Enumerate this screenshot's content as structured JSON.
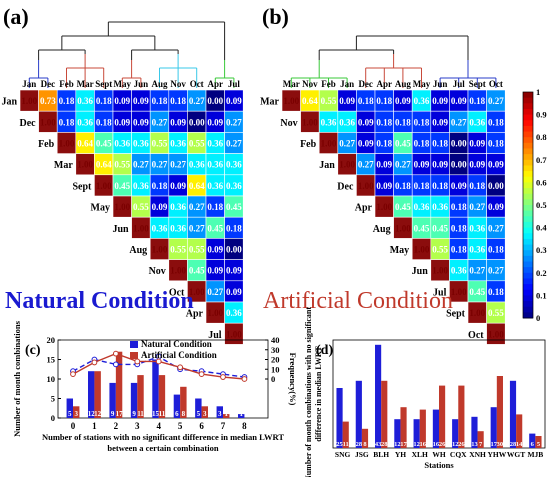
{
  "panels": {
    "a_label": "(a)",
    "b_label": "(b)",
    "c_label": "(c)",
    "d_label": "(d)",
    "natural_title": "Natural Condition",
    "artificial_title": "Artificial Condition"
  },
  "colorbar": {
    "ticks": [
      "0",
      "0.1",
      "0.2",
      "0.3",
      "0.4",
      "0.5",
      "0.6",
      "0.7",
      "0.8",
      "0.9",
      "1"
    ]
  },
  "chart_data": [
    {
      "type": "heatmap",
      "panel": "a",
      "labels": [
        "Jan",
        "Dec",
        "Feb",
        "Mar",
        "Sept",
        "May",
        "Jun",
        "Aug",
        "Nov",
        "Oct",
        "Apr",
        "Jul"
      ],
      "dendrogram_colors": [
        "#2a3cc8",
        "#c84a3a",
        "#c84a3a",
        "#3ac8e8",
        "#3ac83a"
      ],
      "matrix": [
        [
          "1.00",
          "0.73",
          "0.18",
          "0.36",
          "0.18",
          "0.09",
          "0.09",
          "0.18",
          "0.18",
          "0.27",
          "0.00",
          "0.09"
        ],
        [
          "",
          "1.00",
          "0.18",
          "0.36",
          "0.18",
          "0.09",
          "0.09",
          "0.27",
          "0.09",
          "0.00",
          "0.09",
          "0.27"
        ],
        [
          "",
          "",
          "1.00",
          "0.64",
          "0.45",
          "0.36",
          "0.36",
          "0.55",
          "0.36",
          "0.55",
          "0.36",
          "0.27"
        ],
        [
          "",
          "",
          "",
          "1.00",
          "0.64",
          "0.55",
          "0.27",
          "0.27",
          "0.27",
          "0.36",
          "0.36",
          "0.36"
        ],
        [
          "",
          "",
          "",
          "",
          "1.00",
          "0.45",
          "0.36",
          "0.18",
          "0.09",
          "0.64",
          "0.36",
          "0.36"
        ],
        [
          "",
          "",
          "",
          "",
          "",
          "1.00",
          "0.55",
          "0.09",
          "0.36",
          "0.27",
          "0.18",
          "0.45"
        ],
        [
          "",
          "",
          "",
          "",
          "",
          "",
          "1.00",
          "0.36",
          "0.36",
          "0.27",
          "0.45",
          "0.18"
        ],
        [
          "",
          "",
          "",
          "",
          "",
          "",
          "",
          "1.00",
          "0.55",
          "0.55",
          "0.09",
          "0.00"
        ],
        [
          "",
          "",
          "",
          "",
          "",
          "",
          "",
          "",
          "1.00",
          "0.45",
          "0.09",
          "0.09"
        ],
        [
          "",
          "",
          "",
          "",
          "",
          "",
          "",
          "",
          "",
          "1.00",
          "0.27",
          "0.09"
        ],
        [
          "",
          "",
          "",
          "",
          "",
          "",
          "",
          "",
          "",
          "",
          "1.00",
          "0.36"
        ],
        [
          "",
          "",
          "",
          "",
          "",
          "",
          "",
          "",
          "",
          "",
          "",
          "1.00"
        ]
      ]
    },
    {
      "type": "heatmap",
      "panel": "b",
      "labels": [
        "Mar",
        "Nov",
        "Feb",
        "Jan",
        "Dec",
        "Apr",
        "Aug",
        "May",
        "Jun",
        "Jul",
        "Sept",
        "Oct"
      ],
      "dendrogram_colors": [
        "#3ac83a",
        "#c84a3a",
        "#2a3cc8"
      ],
      "matrix": [
        [
          "1.00",
          "0.64",
          "0.55",
          "0.09",
          "0.18",
          "0.18",
          "0.09",
          "0.36",
          "0.09",
          "0.09",
          "0.18",
          "0.27"
        ],
        [
          "",
          "1.00",
          "0.36",
          "0.36",
          "0.09",
          "0.18",
          "0.18",
          "0.18",
          "0.09",
          "0.27",
          "0.36",
          "0.18"
        ],
        [
          "",
          "",
          "1.00",
          "0.27",
          "0.09",
          "0.18",
          "0.45",
          "0.18",
          "0.18",
          "0.00",
          "0.09",
          "0.18"
        ],
        [
          "",
          "",
          "",
          "1.00",
          "0.27",
          "0.09",
          "0.27",
          "0.09",
          "0.09",
          "0.00",
          "0.09",
          "0.09"
        ],
        [
          "",
          "",
          "",
          "",
          "1.00",
          "0.09",
          "0.18",
          "0.18",
          "0.18",
          "0.09",
          "0.18",
          "0.00"
        ],
        [
          "",
          "",
          "",
          "",
          "",
          "1.00",
          "0.45",
          "0.36",
          "0.36",
          "0.18",
          "0.27",
          "0.09"
        ],
        [
          "",
          "",
          "",
          "",
          "",
          "",
          "1.00",
          "0.45",
          "0.45",
          "0.18",
          "0.36",
          "0.27"
        ],
        [
          "",
          "",
          "",
          "",
          "",
          "",
          "",
          "1.00",
          "0.55",
          "0.18",
          "0.36",
          "0.18"
        ],
        [
          "",
          "",
          "",
          "",
          "",
          "",
          "",
          "",
          "1.00",
          "0.36",
          "0.27",
          "0.27"
        ],
        [
          "",
          "",
          "",
          "",
          "",
          "",
          "",
          "",
          "",
          "1.00",
          "0.45",
          "0.18"
        ],
        [
          "",
          "",
          "",
          "",
          "",
          "",
          "",
          "",
          "",
          "",
          "1.00",
          "0.55"
        ],
        [
          "",
          "",
          "",
          "",
          "",
          "",
          "",
          "",
          "",
          "",
          "",
          "1.00"
        ]
      ]
    },
    {
      "type": "bar",
      "panel": "c",
      "categories": [
        "0",
        "1",
        "2",
        "3",
        "4",
        "5",
        "6",
        "7",
        "8"
      ],
      "series": [
        {
          "name": "Natural Condition",
          "color": "#1e1ed8",
          "values": [
            5,
            12,
            9,
            9,
            15,
            6,
            5,
            3,
            1
          ]
        },
        {
          "name": "Artificial Condition",
          "color": "#c0392b",
          "values": [
            3,
            12,
            17,
            11,
            11,
            8,
            3,
            1,
            0
          ]
        }
      ],
      "bar_labels": [
        "5",
        "3",
        "12",
        "12",
        "9",
        "17",
        "9",
        "11",
        "15",
        "11",
        "6",
        "8",
        "5",
        "3",
        "3",
        "1",
        "1",
        "0"
      ],
      "line_series": [
        {
          "series": "Natural Condition",
          "color": "#1e1ed8",
          "style": "dashed",
          "values": [
            8,
            20,
            15,
            15,
            23,
            10,
            8,
            5,
            2
          ]
        },
        {
          "series": "Artificial Condition",
          "color": "#c0392b",
          "style": "solid",
          "values": [
            5,
            17,
            26,
            18,
            18,
            12,
            5,
            2,
            0
          ]
        }
      ],
      "xlabel": "Number of stations with no significant difference in median LWRT between a certain combination",
      "ylabel": "Number of month combinations",
      "y2label": "Frequency(%)",
      "ylim": [
        0,
        20
      ],
      "yticks": [
        "0",
        "5",
        "10",
        "15",
        "20"
      ],
      "y2lim": [
        -40,
        40
      ],
      "y2ticks": [
        "0",
        "10",
        "20",
        "30",
        "40"
      ],
      "legend": "top-right"
    },
    {
      "type": "bar",
      "panel": "d",
      "categories": [
        "SNG",
        "JSG",
        "BLH",
        "YH",
        "XLH",
        "WH",
        "CQX",
        "XNH",
        "YHW",
        "WGT",
        "MJB"
      ],
      "series": [
        {
          "name": "Natural Condition",
          "color": "#1e1ed8",
          "values": [
            25,
            28,
            43,
            12,
            12,
            16,
            12,
            13,
            17,
            28,
            6
          ]
        },
        {
          "name": "Artificial Condition",
          "color": "#c0392b",
          "values": [
            11,
            8,
            28,
            17,
            16,
            26,
            26,
            7,
            30,
            14,
            5
          ]
        }
      ],
      "bar_labels": [
        "25",
        "11",
        "28",
        "8",
        "43",
        "28",
        "12",
        "17",
        "12",
        "16",
        "16",
        "26",
        "12",
        "26",
        "13",
        "7",
        "17",
        "30",
        "28",
        "14",
        "6",
        "5"
      ],
      "xlabel": "Stations",
      "ylabel": "Number of month combinations with no significant difference in median LWRT",
      "ylim": [
        0,
        45
      ]
    }
  ]
}
